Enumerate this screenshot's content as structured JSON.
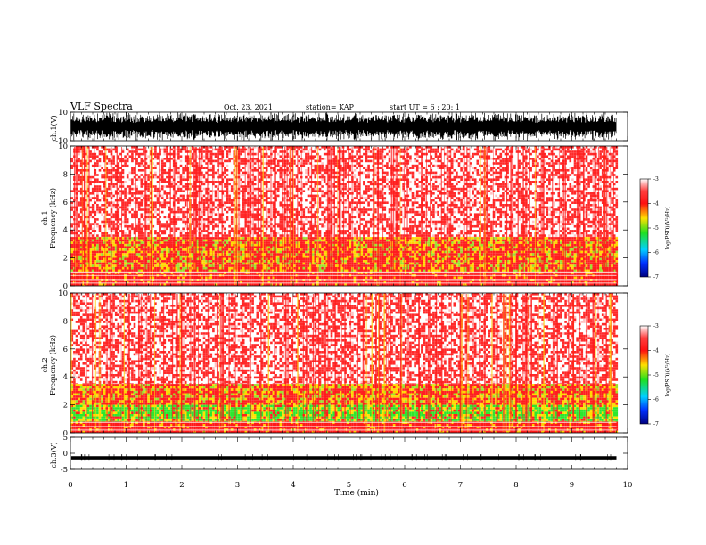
{
  "header": {
    "title": "VLF Spectra",
    "date": "Oct. 23, 2021",
    "station": "station= KAP",
    "start": "start  UT =   6 : 20: 1"
  },
  "colors": {
    "frame": "#000000",
    "waveform": "#000000",
    "background": "#ffffff",
    "colormap": [
      "#ffffff",
      "#ff1a1a",
      "#ffe000",
      "#2ee62e",
      "#00d0ff",
      "#0030ff",
      "#000080"
    ]
  },
  "chart_data": [
    {
      "type": "line",
      "name": "ch1-waveform",
      "ylabel": "ch.1(V)",
      "ylim": [
        -10,
        10
      ],
      "ytick_labels": [
        "10",
        "-10"
      ],
      "xlim": [
        0,
        10
      ],
      "data_extent_min": 9.8,
      "description_values": {
        "typical_amplitude_V": [
          -6,
          6
        ],
        "peak_amplitude_V": [
          -10,
          10
        ]
      }
    },
    {
      "type": "heatmap",
      "name": "ch1-spectrogram",
      "ylabel_channel": "ch.1",
      "ylabel": "Frequency (kHz)",
      "ylim": [
        0,
        10
      ],
      "ytick_labels": [
        "0",
        "2",
        "4",
        "6",
        "8",
        "10"
      ],
      "xlim": [
        0,
        10
      ],
      "data_extent_min": 9.8,
      "colorbar": {
        "label": "log(PSD)(V²/Hz)",
        "range": [
          -7,
          -3
        ],
        "tick_labels": [
          "-3",
          "-4",
          "-5",
          "-6",
          "-7"
        ]
      },
      "bands": [
        {
          "freq_kHz": [
            0,
            1.0
          ],
          "level": -3.4
        },
        {
          "freq_kHz": [
            1.0,
            3.5
          ],
          "level": -3.7
        },
        {
          "freq_kHz": [
            3.5,
            5.0
          ],
          "level": -3.9
        },
        {
          "freq_kHz": [
            5.0,
            10.0
          ],
          "level": -4.0
        }
      ]
    },
    {
      "type": "heatmap",
      "name": "ch2-spectrogram",
      "ylabel_channel": "ch.2",
      "ylabel": "Frequency (kHz)",
      "ylim": [
        0,
        10
      ],
      "ytick_labels": [
        "0",
        "2",
        "4",
        "6",
        "8",
        "10"
      ],
      "xlim": [
        0,
        10
      ],
      "data_extent_min": 9.8,
      "colorbar": {
        "label": "log(PSD)(V²/Hz)",
        "range": [
          -7,
          -3
        ],
        "tick_labels": [
          "-3",
          "-4",
          "-5",
          "-6",
          "-7"
        ]
      },
      "bands": [
        {
          "freq_kHz": [
            0,
            0.8
          ],
          "level": -3.4
        },
        {
          "freq_kHz": [
            0.8,
            2.0
          ],
          "level": -4.8
        },
        {
          "freq_kHz": [
            2.0,
            3.5
          ],
          "level": -3.8
        },
        {
          "freq_kHz": [
            3.5,
            10.0
          ],
          "level": -4.0
        }
      ]
    },
    {
      "type": "line",
      "name": "ch3-waveform",
      "ylabel": "ch.3(V)",
      "ylim": [
        -5,
        5
      ],
      "ytick_labels": [
        "5",
        "0",
        "-5"
      ],
      "xlim": [
        0,
        10
      ],
      "data_extent_min": 9.8,
      "description_values": {
        "center_V": -1.4,
        "amplitude_V": 0.5
      }
    }
  ],
  "xaxis": {
    "label": "Time (min)",
    "range": [
      0,
      10
    ],
    "tick_labels": [
      "0",
      "1",
      "2",
      "3",
      "4",
      "5",
      "6",
      "7",
      "8",
      "9",
      "10"
    ]
  }
}
